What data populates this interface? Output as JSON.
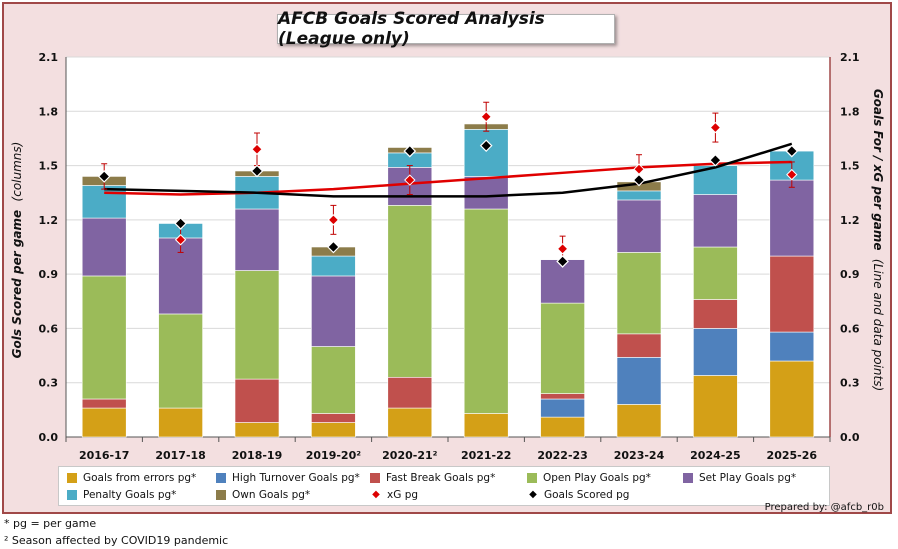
{
  "title": "AFCB Goals Scored Analysis (League only)",
  "y_label_left": "Gols Scored per game",
  "y_label_left_note": "(columns)",
  "y_label_right": "Goals For / xG per game",
  "y_label_right_note": "(Line and data points)",
  "credit": "Prepared by: @afcb_r0b",
  "footnotes": [
    "* pg = per game",
    "² Season affected by COVID19 pandemic"
  ],
  "colors": {
    "Goals from errors pg*": "#d4a017",
    "High Turnover Goals pg*": "#4f81bd",
    "Fast Break Goals pg*": "#c0504d",
    "Open Play Goals pg*": "#9bbb59",
    "Set Play Goals pg*": "#8064a2",
    "Penalty Goals pg*": "#4bacc6",
    "Own Goals pg*": "#8c7c4a",
    "xG pg": "#dd0000",
    "Goals Scored pg": "#000000"
  },
  "chart_data": {
    "type": "bar",
    "stacked": true,
    "title": "AFCB Goals Scored Analysis (League only)",
    "xlabel": "",
    "ylabel": "Gols Scored per game (columns)",
    "y2label": "Goals For / xG per game (Line and data points)",
    "ylim": [
      0,
      2.1
    ],
    "y2lim": [
      0,
      2.1
    ],
    "yticks": [
      "0.0",
      "0.3",
      "0.6",
      "0.9",
      "1.2",
      "1.5",
      "1.8",
      "2.1"
    ],
    "grid": true,
    "legend_position": "bottom",
    "categories": [
      "2016-17",
      "2017-18",
      "2018-19",
      "2019-20²",
      "2020-21²",
      "2021-22",
      "2022-23",
      "2023-24",
      "2024-25",
      "2025-26"
    ],
    "series": [
      {
        "name": "Goals from errors pg*",
        "values": [
          0.16,
          0.16,
          0.08,
          0.08,
          0.16,
          0.13,
          0.11,
          0.18,
          0.34,
          0.42
        ]
      },
      {
        "name": "High Turnover Goals pg*",
        "values": [
          0.0,
          0.0,
          0.0,
          0.0,
          0.0,
          0.0,
          0.1,
          0.26,
          0.26,
          0.16
        ]
      },
      {
        "name": "Fast Break Goals pg*",
        "values": [
          0.05,
          0.0,
          0.24,
          0.05,
          0.17,
          0.0,
          0.03,
          0.13,
          0.16,
          0.42
        ]
      },
      {
        "name": "Open Play Goals pg*",
        "values": [
          0.68,
          0.52,
          0.6,
          0.37,
          0.95,
          1.13,
          0.5,
          0.45,
          0.29,
          0.0
        ]
      },
      {
        "name": "Set Play Goals pg*",
        "values": [
          0.32,
          0.42,
          0.34,
          0.39,
          0.21,
          0.18,
          0.24,
          0.29,
          0.29,
          0.42
        ]
      },
      {
        "name": "Penalty Goals pg*",
        "values": [
          0.18,
          0.08,
          0.18,
          0.11,
          0.08,
          0.26,
          0.0,
          0.05,
          0.16,
          0.16
        ]
      },
      {
        "name": "Own Goals pg*",
        "values": [
          0.05,
          0.0,
          0.03,
          0.05,
          0.03,
          0.03,
          0.0,
          0.05,
          0.0,
          0.0
        ]
      }
    ],
    "xg": [
      1.44,
      1.09,
      1.59,
      1.2,
      1.42,
      1.77,
      1.04,
      1.48,
      1.71,
      1.45
    ],
    "xg_error": [
      0.07,
      0.07,
      0.09,
      0.08,
      0.08,
      0.08,
      0.07,
      0.08,
      0.08,
      0.07
    ],
    "goals_scored": [
      1.44,
      1.18,
      1.47,
      1.05,
      1.58,
      1.61,
      0.97,
      1.42,
      1.53,
      1.58
    ],
    "xg_trend": [
      1.35,
      1.34,
      1.35,
      1.37,
      1.4,
      1.43,
      1.46,
      1.49,
      1.51,
      1.52
    ],
    "goals_trend": [
      1.37,
      1.36,
      1.35,
      1.33,
      1.33,
      1.33,
      1.35,
      1.4,
      1.49,
      1.62
    ]
  }
}
